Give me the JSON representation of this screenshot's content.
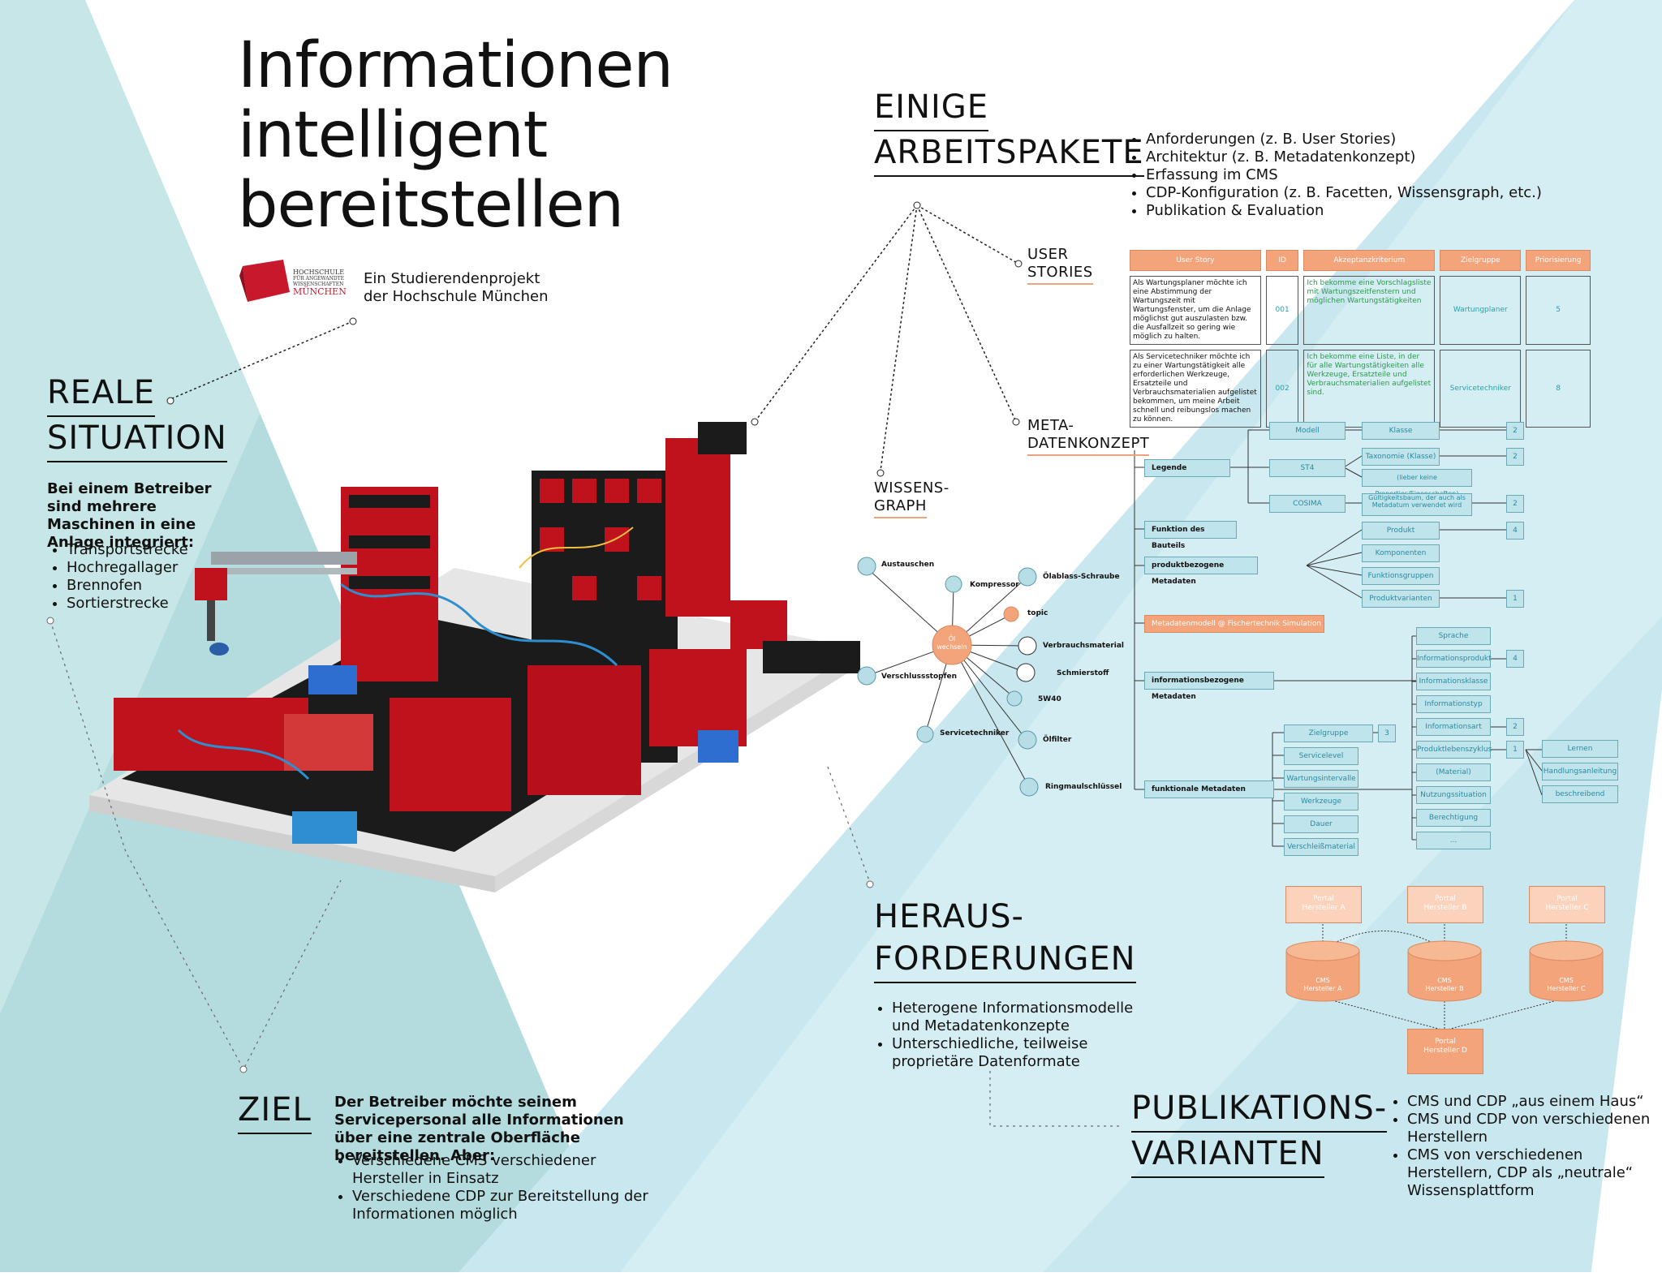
{
  "title_lines": [
    "Informationen",
    "intelligent",
    "bereitstellen"
  ],
  "logo": {
    "l1": "HOCHSCHULE",
    "l2": "FÜR ANGEWANDTE",
    "l3": "WISSENSCHAFTEN",
    "l4": "MÜNCHEN"
  },
  "subtitle": {
    "l1": "Ein Studierendenprojekt",
    "l2": "der Hochschule München"
  },
  "reale": {
    "head1": "REALE",
    "head2": "SITUATION",
    "intro": "Bei einem  Betreiber sind mehrere Maschinen in eine Anlage integriert:",
    "items": [
      "Transportstrecke",
      "Hochregallager",
      "Brennofen",
      "Sortierstrecke"
    ]
  },
  "ziel": {
    "head": "ZIEL",
    "intro": "Der Betreiber möchte seinem Servicepersonal alle Informationen über eine zentrale Oberfläche bereitstellen. Aber:",
    "items": [
      "Verschiedene CMS verschiedener Hersteller in Einsatz",
      "Verschiedene CDP zur Bereitstellung der Informationen möglich"
    ]
  },
  "arbeitspakete": {
    "head1": "EINIGE",
    "head2": "ARBEITSPAKETE",
    "items": [
      "Anforderungen (z. B. User Stories)",
      "Architektur (z. B. Metadatenkonzept)",
      "Erfassung im CMS",
      "CDP-Konfiguration (z. B. Facetten, Wissensgraph, etc.)",
      "Publikation & Evaluation"
    ]
  },
  "sublabels": {
    "user1": "USER",
    "user2": "STORIES",
    "meta1": "META-",
    "meta2": "DATENKONZEPT",
    "wissen1": "WISSENS-",
    "wissen2": "GRAPH"
  },
  "user_stories": {
    "headers": [
      "User Story",
      "ID",
      "Akzeptanzkriterium",
      "Zielgruppe",
      "Priorisierung"
    ],
    "rows": [
      [
        "Als Wartungsplaner möchte ich eine Abstimmung der Wartungszeit mit Wartungsfenster, um die Anlage möglichst gut auszulasten bzw. die Ausfallzeit so gering wie möglich zu halten.",
        "001",
        "Ich bekomme eine Vorschlagsliste mit Wartungszeitfenstern und möglichen Wartungstätigkeiten",
        "Wartungplaner",
        "5"
      ],
      [
        "Als Servicetechniker möchte ich zu einer Wartungstätigkeit alle erforderlichen Werkzeuge, Ersatzteile und Verbrauchsmaterialien aufgelistet bekommen, um meine Arbeit schnell und reibungslos machen zu können.",
        "002",
        "Ich bekomme eine Liste, in der für alle Wartungstätigkeiten alle Werkzeuge, Ersatzteile und Verbrauchsmaterialien aufgelistet sind.",
        "Servicetechniker",
        "8"
      ]
    ]
  },
  "metadaten": {
    "legende": "Legende",
    "modell": "Modell",
    "st4": "ST4",
    "cosima": "COSIMA",
    "klasse": "Klasse",
    "taxonomie": "Taxonomie (Klasse)",
    "keine": "(lieber keine Properties/Eigenschaften)",
    "gueltig": "Gültigkeitsbaum, der auch als Metadatum verwendet wird",
    "n2a": "2",
    "n2b": "2",
    "n2c": "2",
    "funktion": "Funktion des Bauteils",
    "produkt_md": "produktbezogene Metadaten",
    "produkt": "Produkt",
    "n4a": "4",
    "komponenten": "Komponenten",
    "funktionsgruppen": "Funktionsgruppen",
    "produktvarianten": "Produktvarianten",
    "n1a": "1",
    "metamodell": "Metadatenmodell @ Fischertechnik Simulation",
    "info_md": "informationsbezogene Metadaten",
    "sprache": "Sprache",
    "infoprodukt": "Informationsprodukt",
    "n4b": "4",
    "infoklasse": "Informationsklasse",
    "infotyp": "Informationstyp",
    "infoart": "Informationsart",
    "n2d": "2",
    "lebenszyklus": "Produktlebenszyklus",
    "n1b": "1",
    "material": "(Material)",
    "nutzung": "Nutzungssituation",
    "berechtigung": "Berechtigung",
    "dots": "...",
    "lernen": "Lernen",
    "handlung": "Handlungsanleitung",
    "beschreibend": "beschreibend",
    "funk_md": "funktionale Metadaten",
    "zielgruppe": "Zielgruppe",
    "n3": "3",
    "servicelevel": "Servicelevel",
    "intervalle": "Wartungsintervalle",
    "werkzeuge": "Werkzeuge",
    "dauer": "Dauer",
    "verschleiss": "Verschleißmaterial"
  },
  "graph": {
    "center1": "Öl",
    "center2": "wechseln",
    "nodes": [
      "Austauschen",
      "Kompressor",
      "Ölablass-Schraube",
      "topic",
      "Verbrauchsmaterial",
      "Schmierstoff",
      "5W40",
      "Ölfilter",
      "Ringmaulschlüssel",
      "Servicetechniker",
      "Verschlussstopfen"
    ]
  },
  "heraus": {
    "head1": "HERAUS-",
    "head2": "FORDERUNGEN",
    "items": [
      "Heterogene Informationsmodelle und Metadatenkonzepte",
      "Unterschiedliche, teilweise proprietäre Datenformate"
    ]
  },
  "publik": {
    "head1": "PUBLIKATIONS-",
    "head2": "VARIANTEN",
    "items": [
      "CMS und CDP „aus einem Haus“",
      "CMS und CDP von verschiedenen Herstellern",
      "CMS von verschiedenen Herstellern, CDP als „neutrale“ Wissensplattform"
    ]
  },
  "portal": {
    "pa1": "Portal",
    "pa2": "Hersteller A",
    "pb1": "Portal",
    "pb2": "Hersteller B",
    "pc1": "Portal",
    "pc2": "Hersteller C",
    "ca1": "CMS",
    "ca2": "Hersteller A",
    "cb1": "CMS",
    "cb2": "Hersteller B",
    "cc1": "CMS",
    "cc2": "Hersteller C",
    "pd1": "Portal",
    "pd2": "Hersteller D"
  },
  "colors": {
    "teal": "#c5e3ea",
    "orange": "#f4a47a",
    "accent": "#c8182c"
  }
}
